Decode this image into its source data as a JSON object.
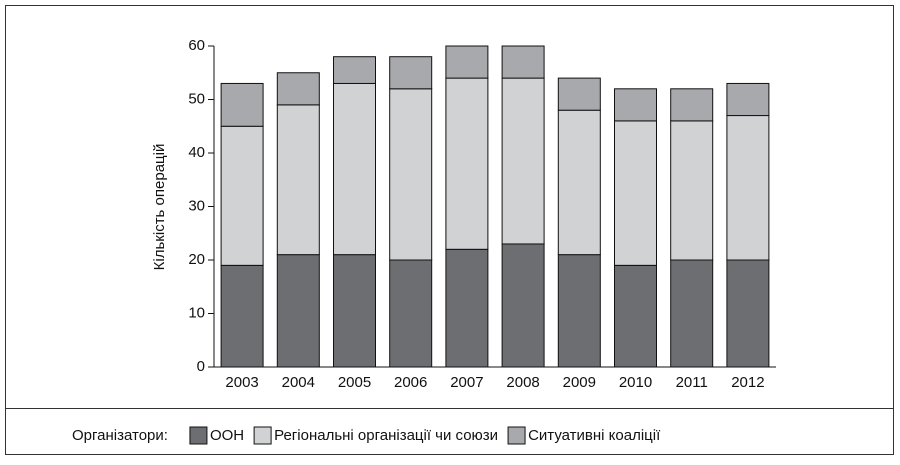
{
  "chart_data": {
    "type": "stacked_bar",
    "y_label": "Кількість операцій",
    "categories": [
      "2003",
      "2004",
      "2005",
      "2006",
      "2007",
      "2008",
      "2009",
      "2010",
      "2011",
      "2012"
    ],
    "series": [
      {
        "name": "ООН",
        "color": "#6d6e71",
        "values": [
          19,
          21,
          21,
          20,
          22,
          23,
          21,
          19,
          20,
          20
        ]
      },
      {
        "name": "Регіональні організації чи союзи",
        "color": "#d1d2d4",
        "values": [
          26,
          28,
          32,
          32,
          32,
          31,
          27,
          27,
          26,
          27
        ]
      },
      {
        "name": "Ситуативні коаліції",
        "color": "#a7a9ac",
        "values": [
          8,
          6,
          5,
          6,
          6,
          6,
          6,
          6,
          6,
          6
        ]
      }
    ],
    "legend_title": "Організатори:",
    "ylim": [
      0,
      60
    ],
    "yticks": [
      0,
      10,
      20,
      30,
      40,
      50,
      60
    ]
  }
}
